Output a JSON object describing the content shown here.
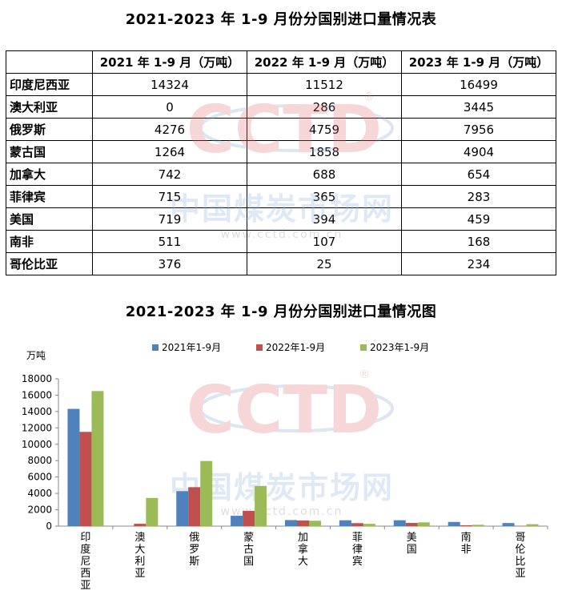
{
  "table": {
    "title": "2021-2023 年 1-9 月份分国别进口量情况表",
    "headers": [
      "",
      "2021 年 1-9 月（万吨）",
      "2022 年 1-9 月（万吨）",
      "2023 年 1-9 月（万吨）"
    ],
    "rows": [
      {
        "country": "印度尼西亚",
        "v2021": "14324",
        "v2022": "11512",
        "v2023": "16499"
      },
      {
        "country": "澳大利亚",
        "v2021": "0",
        "v2022": "286",
        "v2023": "3445"
      },
      {
        "country": "俄罗斯",
        "v2021": "4276",
        "v2022": "4759",
        "v2023": "7956"
      },
      {
        "country": "蒙古国",
        "v2021": "1264",
        "v2022": "1858",
        "v2023": "4904"
      },
      {
        "country": "加拿大",
        "v2021": "742",
        "v2022": "688",
        "v2023": "654"
      },
      {
        "country": "菲律宾",
        "v2021": "715",
        "v2022": "365",
        "v2023": "283"
      },
      {
        "country": "美国",
        "v2021": "719",
        "v2022": "394",
        "v2023": "459"
      },
      {
        "country": "南非",
        "v2021": "511",
        "v2022": "107",
        "v2023": "168"
      },
      {
        "country": "哥伦比亚",
        "v2021": "376",
        "v2022": "25",
        "v2023": "234"
      }
    ]
  },
  "watermark": {
    "logo": "CCTD",
    "registered": "®",
    "site_name": "中国煤炭市场网",
    "url": "www.cctd.com.cn"
  },
  "chart_data": {
    "type": "bar",
    "title": "2021-2023 年 1-9 月份分国别进口量情况图",
    "ylabel": "万吨",
    "xlabel": "",
    "categories": [
      "印度尼西亚",
      "澳大利亚",
      "俄罗斯",
      "蒙古国",
      "加拿大",
      "菲律宾",
      "美国",
      "南非",
      "哥伦比亚"
    ],
    "series": [
      {
        "name": "2021年1-9月",
        "color": "#4F81BD",
        "values": [
          14324,
          0,
          4276,
          1264,
          742,
          715,
          719,
          511,
          376
        ]
      },
      {
        "name": "2022年1-9月",
        "color": "#C0504D",
        "values": [
          11512,
          286,
          4759,
          1858,
          688,
          365,
          394,
          107,
          25
        ]
      },
      {
        "name": "2023年1-9月",
        "color": "#9BBB59",
        "values": [
          16499,
          3445,
          7956,
          4904,
          654,
          283,
          459,
          168,
          234
        ]
      }
    ],
    "ylim": [
      0,
      18000
    ],
    "yticks": [
      0,
      2000,
      4000,
      6000,
      8000,
      10000,
      12000,
      14000,
      16000,
      18000
    ],
    "grid": false,
    "legend": "top-center"
  }
}
